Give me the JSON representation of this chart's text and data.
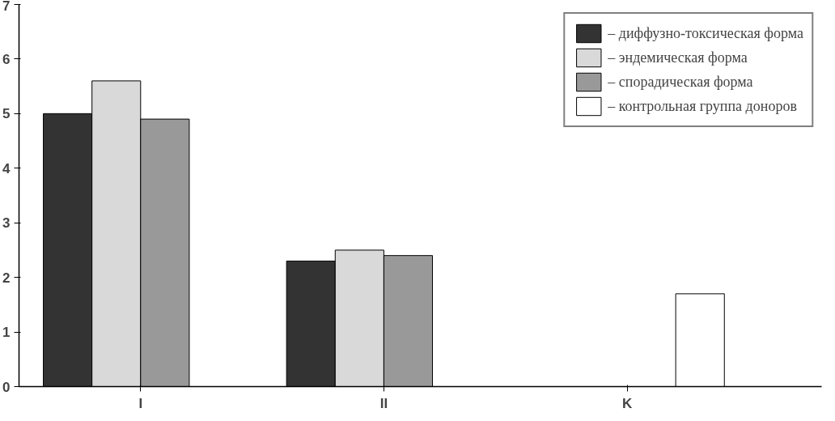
{
  "chart_data": {
    "type": "bar",
    "categories": [
      "I",
      "II",
      "K"
    ],
    "series": [
      {
        "name": "– диффузно-токсическая форма",
        "color": "#333333",
        "values": [
          5.0,
          2.3,
          null
        ]
      },
      {
        "name": "– эндемическая форма",
        "color": "#d9d9d9",
        "values": [
          5.6,
          2.5,
          null
        ]
      },
      {
        "name": "– спорадическая форма",
        "color": "#999999",
        "values": [
          4.9,
          2.4,
          null
        ]
      },
      {
        "name": "– контрольная группа доноров",
        "color": "#ffffff",
        "values": [
          null,
          null,
          1.7
        ]
      }
    ],
    "ylim": [
      0,
      7
    ],
    "yticks": [
      0,
      1,
      2,
      3,
      4,
      5,
      6,
      7
    ],
    "legend": "top right"
  }
}
